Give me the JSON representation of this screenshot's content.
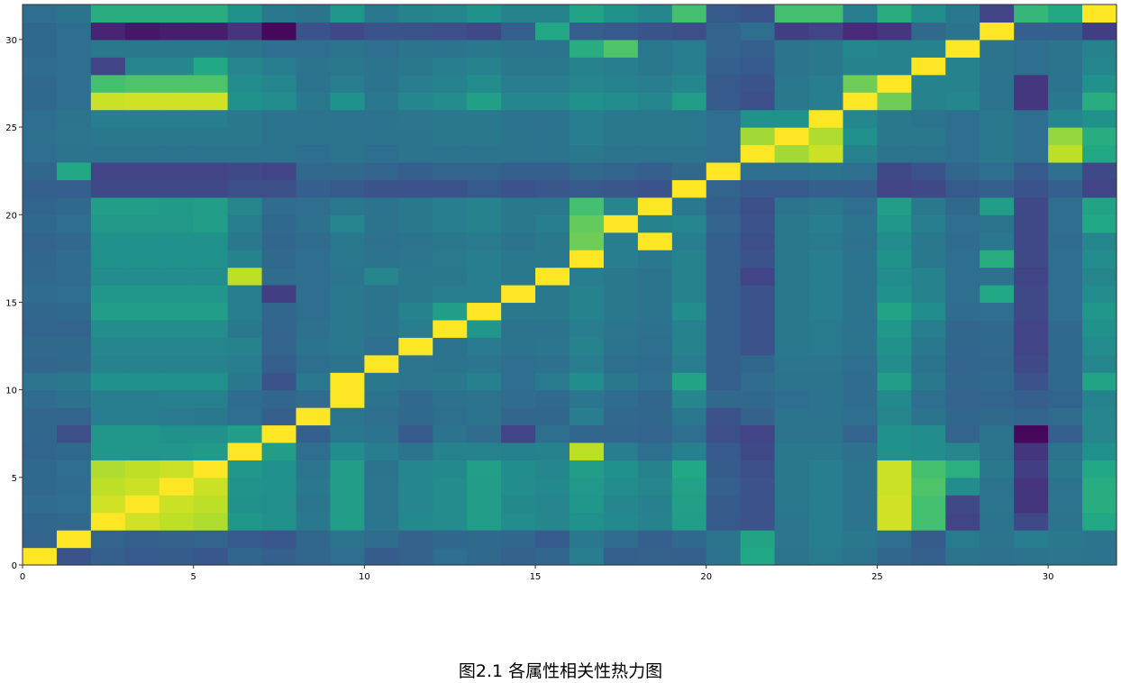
{
  "caption": "图2.1 各属性相关性热力图",
  "chart_data": {
    "type": "heatmap",
    "colormap": "viridis",
    "xlim": [
      0,
      32
    ],
    "ylim": [
      0,
      32
    ],
    "xticks": [
      0,
      5,
      10,
      15,
      20,
      25,
      30
    ],
    "yticks": [
      0,
      5,
      10,
      15,
      20,
      25,
      30
    ],
    "grid": false,
    "rows": 32,
    "cols": 32,
    "values": [
      [
        1.0,
        0.26,
        0.3,
        0.28,
        0.29,
        0.27,
        0.33,
        0.3,
        0.33,
        0.36,
        0.29,
        0.31,
        0.36,
        0.34,
        0.31,
        0.33,
        0.42,
        0.3,
        0.31,
        0.3,
        0.38,
        0.6,
        0.38,
        0.41,
        0.38,
        0.33,
        0.3,
        0.38,
        0.37,
        0.38,
        0.39,
        0.38
      ],
      [
        0.32,
        1.0,
        0.32,
        0.3,
        0.31,
        0.32,
        0.28,
        0.27,
        0.33,
        0.38,
        0.35,
        0.31,
        0.33,
        0.34,
        0.33,
        0.28,
        0.4,
        0.35,
        0.3,
        0.34,
        0.38,
        0.58,
        0.39,
        0.42,
        0.4,
        0.36,
        0.29,
        0.41,
        0.38,
        0.42,
        0.4,
        0.38
      ],
      [
        0.33,
        0.34,
        1.0,
        0.93,
        0.9,
        0.88,
        0.52,
        0.5,
        0.4,
        0.55,
        0.39,
        0.47,
        0.48,
        0.55,
        0.48,
        0.46,
        0.5,
        0.47,
        0.44,
        0.55,
        0.28,
        0.25,
        0.39,
        0.42,
        0.38,
        0.93,
        0.7,
        0.2,
        0.38,
        0.22,
        0.38,
        0.6
      ],
      [
        0.35,
        0.36,
        0.93,
        1.0,
        0.92,
        0.9,
        0.5,
        0.49,
        0.39,
        0.55,
        0.39,
        0.46,
        0.48,
        0.55,
        0.47,
        0.45,
        0.52,
        0.46,
        0.43,
        0.56,
        0.29,
        0.25,
        0.4,
        0.42,
        0.38,
        0.93,
        0.7,
        0.22,
        0.39,
        0.15,
        0.39,
        0.62
      ],
      [
        0.34,
        0.35,
        0.9,
        0.92,
        1.0,
        0.92,
        0.51,
        0.5,
        0.4,
        0.55,
        0.39,
        0.46,
        0.48,
        0.55,
        0.48,
        0.47,
        0.53,
        0.48,
        0.45,
        0.57,
        0.3,
        0.25,
        0.4,
        0.42,
        0.38,
        0.92,
        0.72,
        0.48,
        0.38,
        0.15,
        0.38,
        0.62
      ],
      [
        0.34,
        0.36,
        0.88,
        0.9,
        0.92,
        1.0,
        0.52,
        0.5,
        0.39,
        0.55,
        0.38,
        0.46,
        0.47,
        0.56,
        0.48,
        0.46,
        0.55,
        0.5,
        0.44,
        0.6,
        0.29,
        0.24,
        0.4,
        0.42,
        0.38,
        0.92,
        0.7,
        0.63,
        0.4,
        0.18,
        0.4,
        0.6
      ],
      [
        0.32,
        0.34,
        0.52,
        0.52,
        0.52,
        0.54,
        1.0,
        0.55,
        0.36,
        0.48,
        0.42,
        0.38,
        0.44,
        0.44,
        0.43,
        0.44,
        0.9,
        0.42,
        0.36,
        0.43,
        0.28,
        0.22,
        0.4,
        0.4,
        0.37,
        0.5,
        0.48,
        0.45,
        0.38,
        0.15,
        0.38,
        0.5
      ],
      [
        0.33,
        0.24,
        0.52,
        0.52,
        0.5,
        0.5,
        0.55,
        1.0,
        0.3,
        0.4,
        0.38,
        0.28,
        0.38,
        0.35,
        0.2,
        0.36,
        0.33,
        0.33,
        0.32,
        0.36,
        0.24,
        0.2,
        0.38,
        0.38,
        0.32,
        0.5,
        0.48,
        0.32,
        0.38,
        0.02,
        0.3,
        0.45
      ],
      [
        0.33,
        0.32,
        0.42,
        0.42,
        0.41,
        0.4,
        0.36,
        0.3,
        1.0,
        0.39,
        0.36,
        0.34,
        0.36,
        0.38,
        0.33,
        0.33,
        0.42,
        0.34,
        0.33,
        0.4,
        0.25,
        0.31,
        0.38,
        0.38,
        0.36,
        0.45,
        0.38,
        0.33,
        0.34,
        0.32,
        0.35,
        0.46
      ],
      [
        0.35,
        0.37,
        0.42,
        0.42,
        0.43,
        0.43,
        0.35,
        0.33,
        0.35,
        1.0,
        0.38,
        0.34,
        0.37,
        0.38,
        0.35,
        0.34,
        0.39,
        0.35,
        0.33,
        0.45,
        0.34,
        0.34,
        0.36,
        0.38,
        0.35,
        0.47,
        0.36,
        0.32,
        0.32,
        0.3,
        0.32,
        0.44
      ],
      [
        0.39,
        0.4,
        0.5,
        0.5,
        0.5,
        0.5,
        0.4,
        0.26,
        0.4,
        1.0,
        0.4,
        0.39,
        0.4,
        0.43,
        0.36,
        0.41,
        0.48,
        0.4,
        0.36,
        0.58,
        0.3,
        0.35,
        0.38,
        0.38,
        0.35,
        0.55,
        0.4,
        0.33,
        0.34,
        0.26,
        0.34,
        0.58
      ],
      [
        0.33,
        0.34,
        0.44,
        0.44,
        0.44,
        0.44,
        0.42,
        0.3,
        0.36,
        0.38,
        1.0,
        0.39,
        0.38,
        0.39,
        0.36,
        0.37,
        0.42,
        0.36,
        0.35,
        0.42,
        0.3,
        0.33,
        0.39,
        0.39,
        0.36,
        0.48,
        0.38,
        0.32,
        0.33,
        0.22,
        0.34,
        0.46
      ],
      [
        0.34,
        0.34,
        0.46,
        0.46,
        0.46,
        0.46,
        0.44,
        0.32,
        0.38,
        0.4,
        0.36,
        1.0,
        0.38,
        0.41,
        0.38,
        0.39,
        0.44,
        0.38,
        0.36,
        0.44,
        0.3,
        0.25,
        0.4,
        0.41,
        0.38,
        0.5,
        0.4,
        0.33,
        0.34,
        0.2,
        0.34,
        0.48
      ],
      [
        0.32,
        0.32,
        0.48,
        0.48,
        0.48,
        0.48,
        0.4,
        0.32,
        0.37,
        0.4,
        0.38,
        0.42,
        1.0,
        0.52,
        0.38,
        0.38,
        0.42,
        0.39,
        0.37,
        0.44,
        0.3,
        0.25,
        0.4,
        0.41,
        0.38,
        0.52,
        0.42,
        0.33,
        0.34,
        0.2,
        0.34,
        0.5
      ],
      [
        0.33,
        0.34,
        0.55,
        0.55,
        0.55,
        0.55,
        0.42,
        0.33,
        0.36,
        0.4,
        0.38,
        0.44,
        0.55,
        1.0,
        0.4,
        0.4,
        0.44,
        0.4,
        0.38,
        0.48,
        0.3,
        0.25,
        0.4,
        0.42,
        0.38,
        0.58,
        0.48,
        0.35,
        0.36,
        0.22,
        0.36,
        0.52
      ],
      [
        0.35,
        0.36,
        0.52,
        0.52,
        0.52,
        0.52,
        0.42,
        0.18,
        0.36,
        0.4,
        0.38,
        0.4,
        0.42,
        0.42,
        1.0,
        0.4,
        0.44,
        0.4,
        0.38,
        0.44,
        0.3,
        0.25,
        0.4,
        0.42,
        0.38,
        0.5,
        0.44,
        0.36,
        0.6,
        0.22,
        0.36,
        0.48
      ],
      [
        0.34,
        0.35,
        0.48,
        0.48,
        0.48,
        0.48,
        0.9,
        0.35,
        0.36,
        0.39,
        0.45,
        0.4,
        0.4,
        0.42,
        0.4,
        1.0,
        0.42,
        0.4,
        0.38,
        0.44,
        0.3,
        0.2,
        0.4,
        0.42,
        0.38,
        0.48,
        0.44,
        0.36,
        0.37,
        0.2,
        0.36,
        0.46
      ],
      [
        0.33,
        0.35,
        0.5,
        0.5,
        0.5,
        0.5,
        0.44,
        0.34,
        0.36,
        0.4,
        0.38,
        0.39,
        0.41,
        0.42,
        0.4,
        0.4,
        1.0,
        0.42,
        0.4,
        0.44,
        0.3,
        0.25,
        0.4,
        0.42,
        0.38,
        0.5,
        0.4,
        0.36,
        0.62,
        0.22,
        0.36,
        0.48
      ],
      [
        0.32,
        0.34,
        0.5,
        0.5,
        0.5,
        0.5,
        0.4,
        0.33,
        0.35,
        0.4,
        0.37,
        0.38,
        0.4,
        0.41,
        0.38,
        0.4,
        0.78,
        0.42,
        1.0,
        0.42,
        0.3,
        0.24,
        0.4,
        0.41,
        0.37,
        0.48,
        0.4,
        0.35,
        0.4,
        0.22,
        0.35,
        0.46
      ],
      [
        0.34,
        0.36,
        0.53,
        0.53,
        0.53,
        0.55,
        0.42,
        0.34,
        0.37,
        0.45,
        0.38,
        0.4,
        0.42,
        0.44,
        0.4,
        0.42,
        0.76,
        1.0,
        0.44,
        0.46,
        0.32,
        0.26,
        0.4,
        0.42,
        0.38,
        0.52,
        0.42,
        0.36,
        0.38,
        0.22,
        0.36,
        0.6
      ],
      [
        0.32,
        0.34,
        0.55,
        0.55,
        0.54,
        0.55,
        0.45,
        0.35,
        0.36,
        0.4,
        0.38,
        0.4,
        0.42,
        0.44,
        0.4,
        0.4,
        0.7,
        0.46,
        1.0,
        0.4,
        0.3,
        0.24,
        0.38,
        0.4,
        0.36,
        0.55,
        0.4,
        0.34,
        0.55,
        0.22,
        0.36,
        0.58
      ],
      [
        0.3,
        0.3,
        0.22,
        0.22,
        0.22,
        0.22,
        0.24,
        0.24,
        0.3,
        0.28,
        0.26,
        0.25,
        0.26,
        0.28,
        0.25,
        0.27,
        0.28,
        0.27,
        0.26,
        1.0,
        0.32,
        0.28,
        0.28,
        0.3,
        0.3,
        0.2,
        0.22,
        0.28,
        0.3,
        0.26,
        0.3,
        0.2
      ],
      [
        0.33,
        0.6,
        0.2,
        0.2,
        0.2,
        0.2,
        0.22,
        0.2,
        0.34,
        0.34,
        0.32,
        0.3,
        0.32,
        0.32,
        0.3,
        0.3,
        0.34,
        0.32,
        0.3,
        0.34,
        1.0,
        0.36,
        0.36,
        0.38,
        0.36,
        0.22,
        0.26,
        0.33,
        0.36,
        0.28,
        0.36,
        0.22
      ],
      [
        0.36,
        0.38,
        0.38,
        0.38,
        0.38,
        0.38,
        0.38,
        0.38,
        0.36,
        0.38,
        0.36,
        0.38,
        0.38,
        0.38,
        0.38,
        0.38,
        0.4,
        0.38,
        0.38,
        0.38,
        0.36,
        1.0,
        0.86,
        0.92,
        0.44,
        0.38,
        0.38,
        0.36,
        0.4,
        0.36,
        0.9,
        0.6
      ],
      [
        0.37,
        0.39,
        0.4,
        0.4,
        0.4,
        0.4,
        0.4,
        0.38,
        0.38,
        0.38,
        0.38,
        0.38,
        0.4,
        0.4,
        0.38,
        0.38,
        0.42,
        0.4,
        0.4,
        0.4,
        0.36,
        0.86,
        1.0,
        0.88,
        0.5,
        0.4,
        0.4,
        0.36,
        0.4,
        0.36,
        0.84,
        0.62
      ],
      [
        0.36,
        0.38,
        0.42,
        0.42,
        0.42,
        0.42,
        0.4,
        0.38,
        0.38,
        0.38,
        0.38,
        0.39,
        0.4,
        0.4,
        0.38,
        0.38,
        0.42,
        0.4,
        0.4,
        0.4,
        0.36,
        0.5,
        0.5,
        1.0,
        0.46,
        0.4,
        0.38,
        0.36,
        0.4,
        0.36,
        0.46,
        0.5
      ],
      [
        0.34,
        0.36,
        0.92,
        0.93,
        0.93,
        0.93,
        0.5,
        0.48,
        0.4,
        0.5,
        0.4,
        0.46,
        0.48,
        0.56,
        0.46,
        0.46,
        0.5,
        0.48,
        0.46,
        0.55,
        0.28,
        0.24,
        0.4,
        0.42,
        1.0,
        0.78,
        0.44,
        0.46,
        0.38,
        0.16,
        0.4,
        0.62
      ],
      [
        0.34,
        0.36,
        0.7,
        0.72,
        0.72,
        0.72,
        0.48,
        0.46,
        0.38,
        0.42,
        0.38,
        0.42,
        0.44,
        0.48,
        0.42,
        0.42,
        0.46,
        0.44,
        0.42,
        0.46,
        0.28,
        0.26,
        0.4,
        0.42,
        0.78,
        1.0,
        0.44,
        0.44,
        0.38,
        0.16,
        0.38,
        0.5
      ],
      [
        0.35,
        0.36,
        0.2,
        0.45,
        0.45,
        0.6,
        0.45,
        0.42,
        0.38,
        0.4,
        0.38,
        0.4,
        0.42,
        0.44,
        0.4,
        0.4,
        0.44,
        0.42,
        0.4,
        0.42,
        0.3,
        0.28,
        0.38,
        0.4,
        0.44,
        0.44,
        1.0,
        0.44,
        0.38,
        0.36,
        0.38,
        0.46
      ],
      [
        0.34,
        0.36,
        0.4,
        0.4,
        0.4,
        0.4,
        0.38,
        0.36,
        0.36,
        0.38,
        0.36,
        0.38,
        0.38,
        0.4,
        0.38,
        0.38,
        0.62,
        0.72,
        0.4,
        0.42,
        0.32,
        0.3,
        0.38,
        0.4,
        0.46,
        0.44,
        0.44,
        1.0,
        0.38,
        0.36,
        0.38,
        0.44
      ],
      [
        0.34,
        0.36,
        0.1,
        0.06,
        0.08,
        0.08,
        0.15,
        0.02,
        0.26,
        0.22,
        0.26,
        0.26,
        0.24,
        0.22,
        0.3,
        0.6,
        0.3,
        0.28,
        0.26,
        0.24,
        0.32,
        0.36,
        0.18,
        0.2,
        0.12,
        0.16,
        0.34,
        0.38,
        1.0,
        0.3,
        0.3,
        0.18
      ],
      [
        0.36,
        0.38,
        0.62,
        0.62,
        0.62,
        0.62,
        0.5,
        0.4,
        0.38,
        0.52,
        0.4,
        0.44,
        0.46,
        0.5,
        0.44,
        0.44,
        0.58,
        0.5,
        0.46,
        0.7,
        0.28,
        0.26,
        0.7,
        0.7,
        0.42,
        0.62,
        0.48,
        0.4,
        0.2,
        0.66,
        0.6,
        1.0
      ]
    ]
  },
  "axis_label_color": "#000000",
  "colors": {
    "frame": "#333333",
    "background": "#ffffff"
  }
}
